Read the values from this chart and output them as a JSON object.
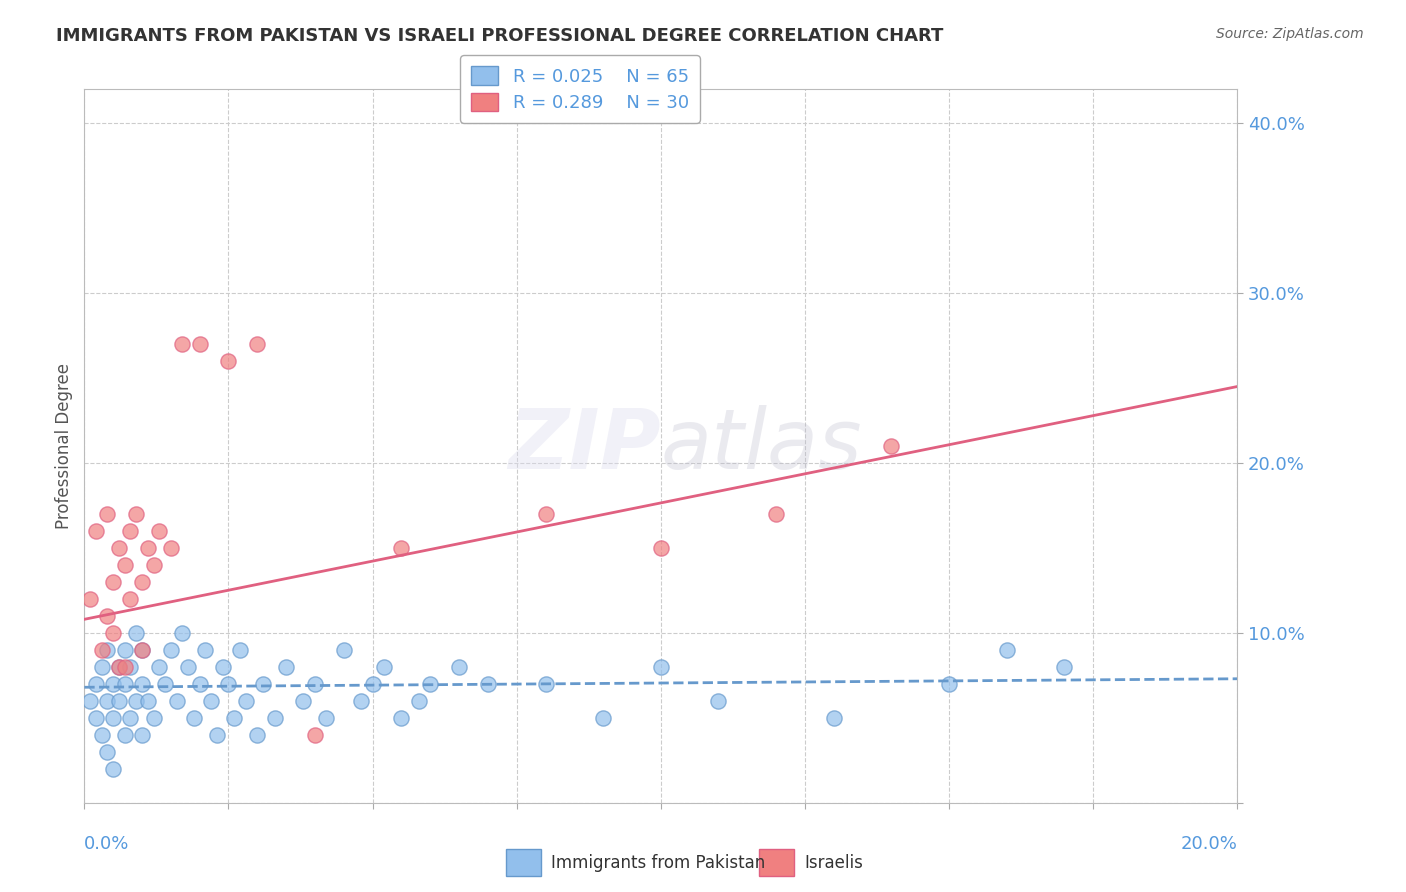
{
  "title": "IMMIGRANTS FROM PAKISTAN VS ISRAELI PROFESSIONAL DEGREE CORRELATION CHART",
  "source_text": "Source: ZipAtlas.com",
  "ylabel": "Professional Degree",
  "xlim": [
    0.0,
    0.2
  ],
  "ylim": [
    0.0,
    0.42
  ],
  "yticks": [
    0.0,
    0.1,
    0.2,
    0.3,
    0.4
  ],
  "ytick_labels": [
    "",
    "10.0%",
    "20.0%",
    "30.0%",
    "40.0%"
  ],
  "xticks": [
    0.0,
    0.025,
    0.05,
    0.075,
    0.1,
    0.125,
    0.15,
    0.175,
    0.2
  ],
  "legend_r1": "R = 0.025",
  "legend_n1": "N = 65",
  "legend_r2": "R = 0.289",
  "legend_n2": "N = 30",
  "color_blue": "#92BFEC",
  "color_pink": "#F08080",
  "color_blue_line": "#6699CC",
  "color_pink_line": "#E06080",
  "color_axis_labels": "#5599DD",
  "blue_scatter_x": [
    0.001,
    0.002,
    0.002,
    0.003,
    0.003,
    0.004,
    0.004,
    0.004,
    0.005,
    0.005,
    0.005,
    0.006,
    0.006,
    0.007,
    0.007,
    0.007,
    0.008,
    0.008,
    0.009,
    0.009,
    0.01,
    0.01,
    0.01,
    0.011,
    0.012,
    0.013,
    0.014,
    0.015,
    0.016,
    0.017,
    0.018,
    0.019,
    0.02,
    0.021,
    0.022,
    0.023,
    0.024,
    0.025,
    0.026,
    0.027,
    0.028,
    0.03,
    0.031,
    0.033,
    0.035,
    0.038,
    0.04,
    0.042,
    0.045,
    0.048,
    0.05,
    0.052,
    0.055,
    0.058,
    0.06,
    0.065,
    0.07,
    0.08,
    0.09,
    0.1,
    0.11,
    0.13,
    0.15,
    0.16,
    0.17
  ],
  "blue_scatter_y": [
    0.06,
    0.05,
    0.07,
    0.04,
    0.08,
    0.03,
    0.06,
    0.09,
    0.05,
    0.07,
    0.02,
    0.06,
    0.08,
    0.04,
    0.07,
    0.09,
    0.05,
    0.08,
    0.06,
    0.1,
    0.04,
    0.07,
    0.09,
    0.06,
    0.05,
    0.08,
    0.07,
    0.09,
    0.06,
    0.1,
    0.08,
    0.05,
    0.07,
    0.09,
    0.06,
    0.04,
    0.08,
    0.07,
    0.05,
    0.09,
    0.06,
    0.04,
    0.07,
    0.05,
    0.08,
    0.06,
    0.07,
    0.05,
    0.09,
    0.06,
    0.07,
    0.08,
    0.05,
    0.06,
    0.07,
    0.08,
    0.07,
    0.07,
    0.05,
    0.08,
    0.06,
    0.05,
    0.07,
    0.09,
    0.08
  ],
  "pink_scatter_x": [
    0.001,
    0.002,
    0.003,
    0.004,
    0.004,
    0.005,
    0.005,
    0.006,
    0.006,
    0.007,
    0.007,
    0.008,
    0.008,
    0.009,
    0.01,
    0.01,
    0.011,
    0.012,
    0.013,
    0.015,
    0.017,
    0.02,
    0.025,
    0.03,
    0.04,
    0.055,
    0.08,
    0.1,
    0.12,
    0.14
  ],
  "pink_scatter_y": [
    0.12,
    0.16,
    0.09,
    0.17,
    0.11,
    0.1,
    0.13,
    0.08,
    0.15,
    0.14,
    0.08,
    0.12,
    0.16,
    0.17,
    0.09,
    0.13,
    0.15,
    0.14,
    0.16,
    0.15,
    0.27,
    0.27,
    0.26,
    0.27,
    0.04,
    0.15,
    0.17,
    0.15,
    0.17,
    0.21
  ],
  "blue_trendline_x": [
    0.0,
    0.2
  ],
  "blue_trendline_y": [
    0.068,
    0.073
  ],
  "pink_trendline_x": [
    0.0,
    0.2
  ],
  "pink_trendline_y": [
    0.108,
    0.245
  ]
}
